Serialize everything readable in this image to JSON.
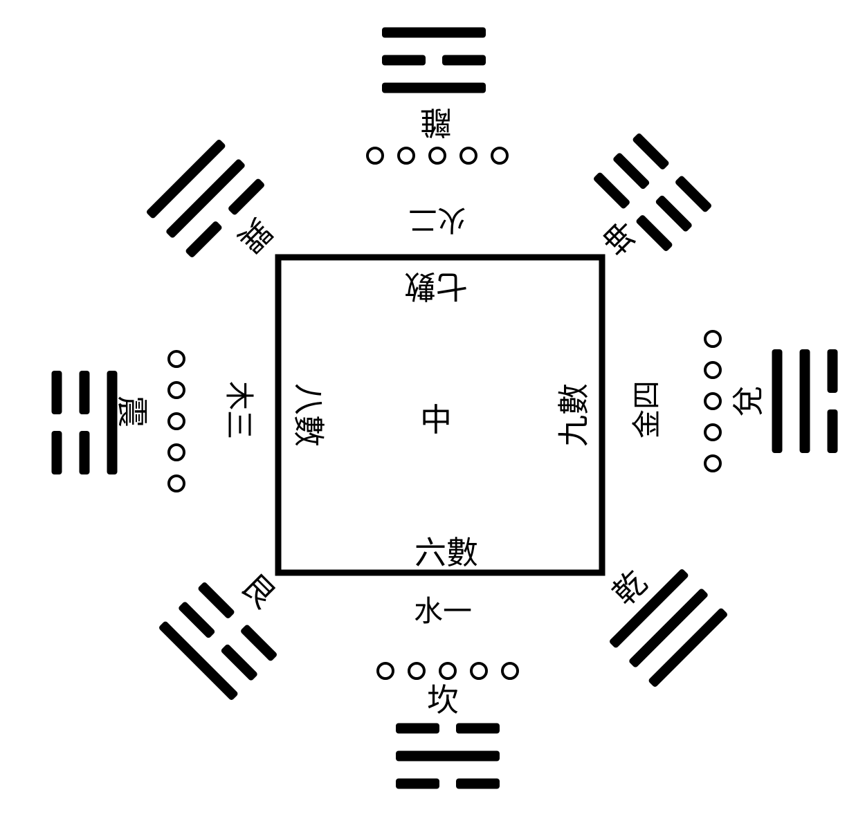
{
  "colors": {
    "ink": "#000000",
    "paper": "#ffffff"
  },
  "center": {
    "label": "中"
  },
  "square_labels": {
    "top": "七數",
    "right": "九數",
    "bottom": "六數",
    "left": "八數"
  },
  "trigrams": {
    "li": {
      "name": "離",
      "lines": [
        "yang",
        "yin",
        "yang"
      ]
    },
    "kun": {
      "name": "坤",
      "lines": [
        "yin",
        "yin",
        "yin"
      ]
    },
    "dui": {
      "name": "兌",
      "lines": [
        "yin",
        "yang",
        "yang"
      ]
    },
    "qian": {
      "name": "乾",
      "lines": [
        "yang",
        "yang",
        "yang"
      ]
    },
    "kan": {
      "name": "坎",
      "lines": [
        "yin",
        "yang",
        "yin"
      ]
    },
    "gen": {
      "name": "艮",
      "lines": [
        "yang",
        "yin",
        "yin"
      ]
    },
    "zhen": {
      "name": "震",
      "lines": [
        "yin",
        "yin",
        "yang"
      ]
    },
    "xun": {
      "name": "巽",
      "lines": [
        "yang",
        "yang",
        "yin"
      ]
    }
  },
  "elements": {
    "fire": {
      "label": "火二",
      "dots": 5
    },
    "water": {
      "label": "水一",
      "dots": 5
    },
    "wood": {
      "label": "木三",
      "dots": 5
    },
    "metal": {
      "label": "金四",
      "dots": 5
    }
  }
}
